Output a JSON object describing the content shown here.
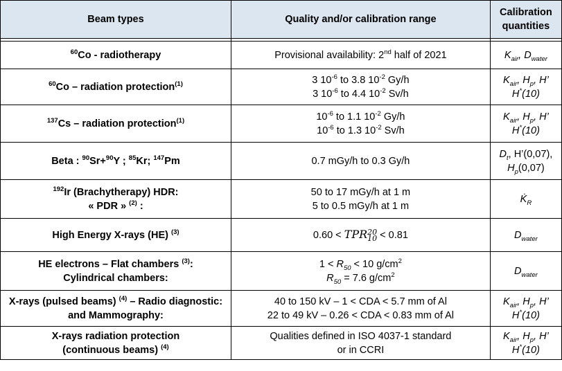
{
  "header": {
    "col1": "Beam types",
    "col2": "Quality and/or calibration range",
    "col3_line1": "Calibration",
    "col3_line2": "quantities"
  },
  "rows": [
    {
      "beam_sup": "60",
      "beam": "Co - radiotherapy",
      "range_a": "Provisional availability: 2",
      "range_sup": "nd",
      "range_b": " half of 2021",
      "q_K": "K",
      "q_K_sub": "air",
      "q_D": "D",
      "q_D_sub": "water"
    },
    {
      "beam_sup": "60",
      "beam": "Co – radiation protection",
      "beam_note": "(1)",
      "l1_a": "3 10",
      "l1_e1": "-6",
      "l1_b": " to 3.8 10",
      "l1_e2": "-2",
      "l1_c": " Gy/h",
      "l2_a": "3 10",
      "l2_e1": "-6",
      "l2_b": " to 4.4 10",
      "l2_e2": "-2",
      "l2_c": " Sv/h",
      "q1": "K",
      "q1_sub": "air",
      "q2": "H",
      "q2_sub": "p",
      "q3": "H’",
      "q4": "H",
      "q4_sup": "*",
      "q4_b": "(10)"
    },
    {
      "beam_sup": "137",
      "beam": "Cs – radiation protection",
      "beam_note": "(1)",
      "l1_a": "10",
      "l1_e1": "-6",
      "l1_b": " to 1.1 10",
      "l1_e2": "-2",
      "l1_c": " Gy/h",
      "l2_a": "10",
      "l2_e1": "-6",
      "l2_b": " to 1.3 10",
      "l2_e2": "-2",
      "l2_c": " Sv/h",
      "q1": "K",
      "q1_sub": "air",
      "q2": "H",
      "q2_sub": "p",
      "q3": "H’",
      "q4": "H",
      "q4_sup": "*",
      "q4_b": "(10)"
    },
    {
      "beam_a": "Beta : ",
      "sup1": "90",
      "beam_b": "Sr+",
      "sup2": "90",
      "beam_c": "Y ; ",
      "sup3": "85",
      "beam_d": "Kr; ",
      "sup4": "147",
      "beam_e": "Pm",
      "range": "0.7 mGy/h to 0.3 Gy/h",
      "q1": "D",
      "q1_sub": "t",
      "q1_b": ", H’(0,07),",
      "q2": "H",
      "q2_sub": "p",
      "q2_b": "(0,07)"
    },
    {
      "beam_sup": "192",
      "beam_l1": "Ir (Brachytherapy) HDR:",
      "beam_l2": "« PDR »",
      "beam_l2_note": "(2)",
      "beam_l2_end": " :",
      "range_l1": "50 to 17 mGy/h at 1 m",
      "range_l2": "5 to 0.5  mGy/h at 1 m",
      "q": "K̇",
      "q_sub": "R"
    },
    {
      "beam": "High Energy X-rays (HE)",
      "beam_note": "(3)",
      "range_a": "0.60 < ",
      "tpr": "TPR",
      "tpr_sup": "20",
      "tpr_sub": "10",
      "range_b": " <  0.81",
      "q": "D",
      "q_sub": "water"
    },
    {
      "beam_l1": "HE electrons – Flat chambers",
      "beam_l1_note": "(3)",
      "beam_l1_end": ":",
      "beam_l2": "Cylindrical chambers:",
      "r1_a": "1 < ",
      "r1_R": "R",
      "r1_sub": "50",
      "r1_b": " < 10 g/cm",
      "r1_sup": "2",
      "r2_R": "R",
      "r2_sub": "50",
      "r2_b": " = 7.6 g/cm",
      "r2_sup": "2",
      "q": "D",
      "q_sub": "water"
    },
    {
      "beam_l1a": "X-rays (pulsed beams)",
      "beam_l1_note": "(4)",
      "beam_l1b": " – Radio diagnostic:",
      "beam_l2": "and Mammography:",
      "range_l1": "40 to 150 kV – 1 < CDA < 5.7 mm of Al",
      "range_l2": "22 to 49 kV – 0.26 < CDA < 0.83 mm of Al",
      "q1": "K",
      "q1_sub": "air",
      "q2": "H",
      "q2_sub": "p",
      "q3": "H’",
      "q4": "H",
      "q4_sup": "*",
      "q4_b": "(10)"
    },
    {
      "beam_l1": "X-rays radiation protection",
      "beam_l2": "(continuous beams)",
      "beam_l2_note": "(4)",
      "range_l1": "Qualities defined in ISO 4037-1 standard",
      "range_l2": "or in CCRI",
      "q1": "K",
      "q1_sub": "air",
      "q2": "H",
      "q2_sub": "p",
      "q3": "H’",
      "q4": "H",
      "q4_sup": "*",
      "q4_b": "(10)"
    }
  ]
}
